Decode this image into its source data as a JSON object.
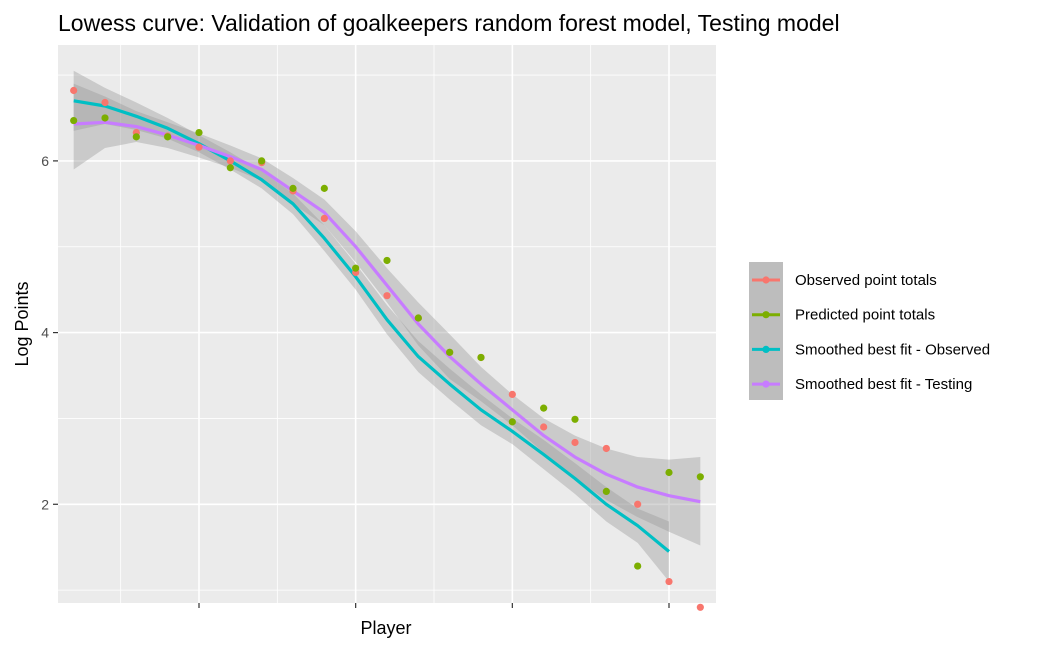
{
  "chart_data": {
    "type": "scatter",
    "title": "Lowess curve: Validation of goalkeepers random forest model, Testing model",
    "xlabel": "Player",
    "ylabel": "Log Points",
    "xlim": [
      0.5,
      21.5
    ],
    "ylim": [
      0.85,
      7.35
    ],
    "y_ticks": [
      2,
      4,
      6
    ],
    "x_ticks": [
      5,
      10,
      15,
      20
    ],
    "grid": true,
    "legend_position": "right",
    "series": [
      {
        "name": "Observed point totals",
        "kind": "points",
        "color": "#F8766D",
        "x": [
          1,
          2,
          3,
          4,
          5,
          6,
          7,
          8,
          9,
          10,
          11,
          12,
          13,
          14,
          15,
          16,
          17,
          18,
          19,
          20,
          21
        ],
        "y": [
          6.82,
          6.68,
          6.33,
          6.29,
          6.16,
          6.0,
          5.98,
          5.65,
          5.33,
          4.7,
          4.43,
          4.17,
          3.77,
          3.71,
          3.28,
          2.9,
          2.72,
          2.65,
          2.0,
          1.1,
          0.8
        ]
      },
      {
        "name": "Predicted point totals",
        "kind": "points",
        "color": "#7CAE00",
        "x": [
          1,
          2,
          3,
          4,
          5,
          6,
          7,
          8,
          9,
          10,
          11,
          12,
          13,
          14,
          15,
          16,
          17,
          18,
          19,
          20,
          21
        ],
        "y": [
          6.47,
          6.5,
          6.28,
          6.28,
          6.33,
          5.92,
          6.0,
          5.68,
          5.68,
          4.75,
          4.84,
          4.17,
          3.77,
          3.71,
          2.96,
          3.12,
          2.99,
          2.15,
          1.28,
          2.37,
          2.32
        ]
      },
      {
        "name": "Smoothed best fit - Observed",
        "kind": "line",
        "color": "#00BFC4",
        "x": [
          1,
          2,
          3,
          4,
          5,
          6,
          7,
          8,
          9,
          10,
          11,
          12,
          13,
          14,
          15,
          16,
          17,
          18,
          19,
          20
        ],
        "y": [
          6.7,
          6.64,
          6.52,
          6.38,
          6.2,
          6.0,
          5.78,
          5.5,
          5.1,
          4.65,
          4.15,
          3.72,
          3.4,
          3.1,
          2.85,
          2.58,
          2.3,
          2.0,
          1.75,
          1.45
        ],
        "ci_upper": [
          7.05,
          6.85,
          6.68,
          6.5,
          6.3,
          6.1,
          5.88,
          5.62,
          5.25,
          4.8,
          4.32,
          3.9,
          3.58,
          3.28,
          3.0,
          2.75,
          2.48,
          2.2,
          1.95,
          1.8
        ],
        "ci_lower": [
          6.35,
          6.43,
          6.36,
          6.26,
          6.1,
          5.9,
          5.68,
          5.38,
          4.95,
          4.5,
          3.98,
          3.54,
          3.22,
          2.92,
          2.7,
          2.41,
          2.12,
          1.8,
          1.55,
          1.1
        ]
      },
      {
        "name": "Smoothed best fit - Testing",
        "kind": "line",
        "color": "#C77CFF",
        "x": [
          1,
          2,
          3,
          4,
          5,
          6,
          7,
          8,
          9,
          10,
          11,
          12,
          13,
          14,
          15,
          16,
          17,
          18,
          19,
          20,
          21
        ],
        "y": [
          6.43,
          6.45,
          6.4,
          6.3,
          6.18,
          6.05,
          5.9,
          5.65,
          5.4,
          5.0,
          4.55,
          4.1,
          3.72,
          3.4,
          3.1,
          2.8,
          2.55,
          2.35,
          2.2,
          2.1,
          2.03
        ],
        "ci_upper": [
          6.9,
          6.75,
          6.58,
          6.45,
          6.32,
          6.18,
          6.03,
          5.8,
          5.55,
          5.18,
          4.75,
          4.35,
          3.98,
          3.6,
          3.28,
          3.0,
          2.8,
          2.65,
          2.55,
          2.52,
          2.55
        ],
        "ci_lower": [
          5.9,
          6.15,
          6.22,
          6.15,
          6.04,
          5.92,
          5.77,
          5.5,
          5.25,
          4.82,
          4.35,
          3.85,
          3.46,
          3.2,
          2.92,
          2.6,
          2.3,
          2.05,
          1.85,
          1.68,
          1.52
        ]
      }
    ]
  }
}
